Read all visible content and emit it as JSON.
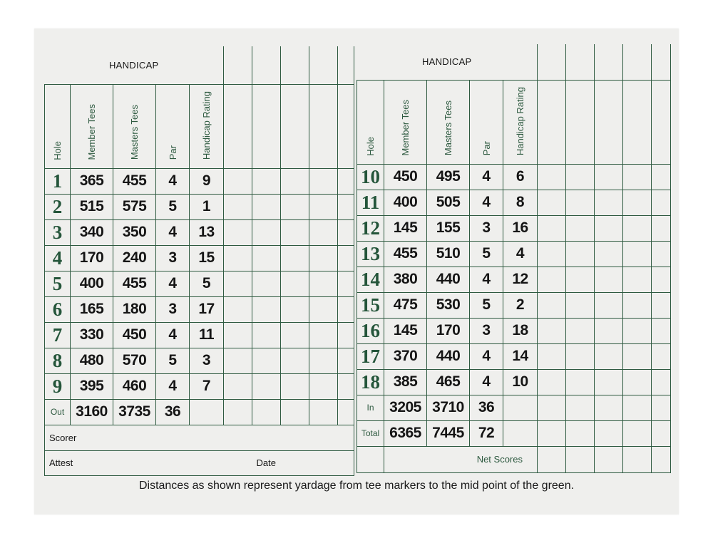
{
  "left": {
    "header_title": "HANDICAP",
    "col_headers": {
      "hole": "Hole",
      "member": "Member Tees",
      "masters": "Masters Tees",
      "par": "Par",
      "hcp": "Handicap Rating"
    },
    "holes": [
      {
        "hole": "1",
        "member": "365",
        "masters": "455",
        "par": "4",
        "hcp": "9"
      },
      {
        "hole": "2",
        "member": "515",
        "masters": "575",
        "par": "5",
        "hcp": "1"
      },
      {
        "hole": "3",
        "member": "340",
        "masters": "350",
        "par": "4",
        "hcp": "13"
      },
      {
        "hole": "4",
        "member": "170",
        "masters": "240",
        "par": "3",
        "hcp": "15"
      },
      {
        "hole": "5",
        "member": "400",
        "masters": "455",
        "par": "4",
        "hcp": "5"
      },
      {
        "hole": "6",
        "member": "165",
        "masters": "180",
        "par": "3",
        "hcp": "17"
      },
      {
        "hole": "7",
        "member": "330",
        "masters": "450",
        "par": "4",
        "hcp": "11"
      },
      {
        "hole": "8",
        "member": "480",
        "masters": "570",
        "par": "5",
        "hcp": "3"
      },
      {
        "hole": "9",
        "member": "395",
        "masters": "460",
        "par": "4",
        "hcp": "7"
      }
    ],
    "out": {
      "label": "Out",
      "member": "3160",
      "masters": "3735",
      "par": "36"
    },
    "scorer_label": "Scorer",
    "attest_label": "Attest",
    "date_label": "Date"
  },
  "right": {
    "header_title": "HANDICAP",
    "col_headers": {
      "hole": "Hole",
      "member": "Member Tees",
      "masters": "Masters Tees",
      "par": "Par",
      "hcp": "Handicap Rating"
    },
    "holes": [
      {
        "hole": "10",
        "member": "450",
        "masters": "495",
        "par": "4",
        "hcp": "6"
      },
      {
        "hole": "11",
        "member": "400",
        "masters": "505",
        "par": "4",
        "hcp": "8"
      },
      {
        "hole": "12",
        "member": "145",
        "masters": "155",
        "par": "3",
        "hcp": "16"
      },
      {
        "hole": "13",
        "member": "455",
        "masters": "510",
        "par": "5",
        "hcp": "4"
      },
      {
        "hole": "14",
        "member": "380",
        "masters": "440",
        "par": "4",
        "hcp": "12"
      },
      {
        "hole": "15",
        "member": "475",
        "masters": "530",
        "par": "5",
        "hcp": "2"
      },
      {
        "hole": "16",
        "member": "145",
        "masters": "170",
        "par": "3",
        "hcp": "18"
      },
      {
        "hole": "17",
        "member": "370",
        "masters": "440",
        "par": "4",
        "hcp": "14"
      },
      {
        "hole": "18",
        "member": "385",
        "masters": "465",
        "par": "4",
        "hcp": "10"
      }
    ],
    "in": {
      "label": "In",
      "member": "3205",
      "masters": "3710",
      "par": "36"
    },
    "total": {
      "label": "Total",
      "member": "6365",
      "masters": "7445",
      "par": "72"
    },
    "net_scores_label": "Net Scores"
  },
  "footer_note": "Distances as shown represent yardage from tee markers to the mid point of the green.",
  "colors": {
    "ink_green": "#2e5a40",
    "card": "#efefed"
  }
}
